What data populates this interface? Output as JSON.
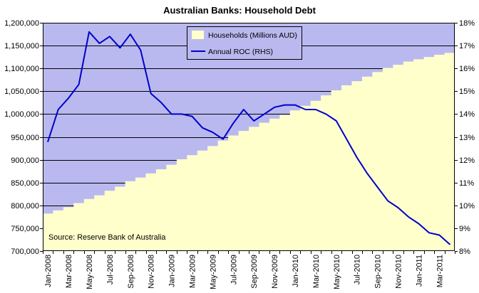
{
  "chart_data": {
    "type": "bar",
    "title": "Australian Banks: Household Debt",
    "x_tick_labels": [
      "Jan-2008",
      "Mar-2008",
      "May-2008",
      "Jul-2008",
      "Sep-2008",
      "Nov-2008",
      "Jan-2009",
      "Mar-2009",
      "May-2009",
      "Jul-2009",
      "Sep-2009",
      "Nov-2009",
      "Jan-2010",
      "Mar-2010",
      "May-2010",
      "Jul-2010",
      "Sep-2010",
      "Nov-2010",
      "Jan-2011",
      "Mar-2011"
    ],
    "series": [
      {
        "name": "Households (Millions AUD)",
        "type": "bar",
        "axis": "left",
        "color": "#ffffcc",
        "values": [
          782000,
          789000,
          796000,
          805000,
          814000,
          822000,
          832000,
          841000,
          853000,
          861000,
          870000,
          879000,
          889000,
          901000,
          910000,
          920000,
          930000,
          942000,
          953000,
          963000,
          972000,
          981000,
          990000,
          998000,
          1008000,
          1018000,
          1029000,
          1041000,
          1052000,
          1063000,
          1072000,
          1082000,
          1092000,
          1101000,
          1108000,
          1115000,
          1120000,
          1125000,
          1130000,
          1134000
        ]
      },
      {
        "name": "Annual ROC (RHS)",
        "type": "line",
        "axis": "right",
        "color": "#0000cc",
        "values": [
          12.8,
          14.2,
          14.7,
          15.3,
          17.6,
          17.1,
          17.4,
          16.9,
          17.5,
          16.8,
          14.9,
          14.5,
          14.0,
          14.0,
          13.9,
          13.4,
          13.2,
          12.9,
          13.6,
          14.2,
          13.7,
          14.0,
          14.3,
          14.4,
          14.4,
          14.2,
          14.2,
          14.0,
          13.7,
          12.9,
          12.1,
          11.4,
          10.8,
          10.2,
          9.9,
          9.5,
          9.2,
          8.8,
          8.7,
          8.3
        ]
      }
    ],
    "y_left": {
      "min": 700000,
      "max": 1200000,
      "tick_labels": [
        "700,000",
        "750,000",
        "800,000",
        "850,000",
        "900,000",
        "950,000",
        "1,000,000",
        "1,050,000",
        "1,100,000",
        "1,150,000",
        "1,200,000"
      ]
    },
    "y_right": {
      "min": 8,
      "max": 18,
      "tick_labels": [
        "8%",
        "9%",
        "10%",
        "11%",
        "12%",
        "13%",
        "14%",
        "15%",
        "16%",
        "17%",
        "18%"
      ]
    },
    "grid": "horizontal",
    "legend": {
      "position": "top-center"
    },
    "annotation": "Source: Reserve Bank of Australia",
    "plot_background": "#b9b9f0"
  }
}
